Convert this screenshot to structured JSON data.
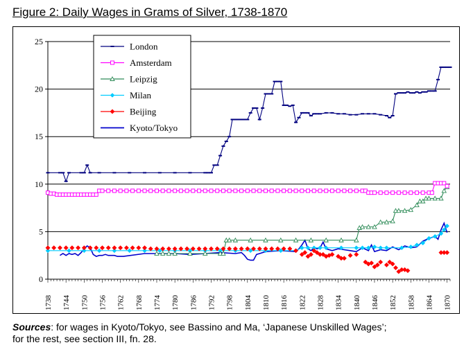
{
  "figure": {
    "title": "Figure 2: Daily Wages in Grams of Silver, 1738-1870",
    "sources_label": "Sources",
    "sources_line1": ": for wages in Kyoto/Tokyo, see Bassino and Ma, ‘Japanese Unskilled Wages’;",
    "sources_line2": "for the rest, see section III, fn. 28."
  },
  "chart_data": {
    "type": "line",
    "title": "Figure 2: Daily Wages in Grams of Silver, 1738-1870",
    "xlabel": "",
    "ylabel": "",
    "xlim": [
      1738,
      1871
    ],
    "ylim": [
      0,
      25
    ],
    "yticks": [
      0,
      5,
      10,
      15,
      20,
      25
    ],
    "xticks": [
      1738,
      1744,
      1750,
      1756,
      1762,
      1768,
      1774,
      1780,
      1786,
      1792,
      1798,
      1804,
      1810,
      1816,
      1822,
      1828,
      1834,
      1840,
      1846,
      1852,
      1858,
      1864,
      1870
    ],
    "grid": "horizontal",
    "legend_position": "top-left",
    "series": [
      {
        "name": "London",
        "color": "#00007f",
        "marker": "dash",
        "x": [
          1738,
          1742,
          1743,
          1744,
          1745,
          1749,
          1750,
          1751,
          1752,
          1755,
          1760,
          1765,
          1770,
          1775,
          1780,
          1785,
          1790,
          1791,
          1792,
          1793,
          1794,
          1795,
          1796,
          1797,
          1798,
          1799,
          1800,
          1801,
          1802,
          1803,
          1804,
          1805,
          1806,
          1807,
          1808,
          1809,
          1810,
          1811,
          1812,
          1813,
          1814,
          1815,
          1816,
          1817,
          1818,
          1819,
          1820,
          1821,
          1822,
          1823,
          1824,
          1825,
          1826,
          1827,
          1828,
          1830,
          1832,
          1834,
          1836,
          1838,
          1840,
          1842,
          1844,
          1846,
          1848,
          1850,
          1851,
          1852,
          1853,
          1854,
          1855,
          1856,
          1857,
          1858,
          1859,
          1860,
          1861,
          1862,
          1863,
          1864,
          1865,
          1866,
          1867,
          1868,
          1869,
          1870,
          1871
        ],
        "y": [
          11.2,
          11.2,
          11.2,
          10.3,
          11.2,
          11.2,
          11.2,
          12.0,
          11.2,
          11.2,
          11.2,
          11.2,
          11.2,
          11.2,
          11.2,
          11.2,
          11.2,
          11.2,
          11.2,
          12.0,
          12.0,
          13.0,
          14.0,
          14.5,
          15.0,
          16.8,
          16.8,
          16.8,
          16.8,
          16.8,
          16.8,
          17.5,
          18.0,
          18.0,
          16.8,
          18.0,
          19.5,
          19.5,
          19.5,
          20.8,
          20.8,
          20.8,
          18.3,
          18.3,
          18.2,
          18.3,
          16.5,
          17.0,
          17.5,
          17.5,
          17.5,
          17.2,
          17.4,
          17.4,
          17.4,
          17.5,
          17.5,
          17.4,
          17.4,
          17.3,
          17.3,
          17.4,
          17.4,
          17.4,
          17.3,
          17.2,
          17.0,
          17.2,
          19.5,
          19.6,
          19.6,
          19.6,
          19.7,
          19.6,
          19.6,
          19.7,
          19.6,
          19.7,
          19.7,
          19.8,
          19.8,
          19.8,
          21.0,
          22.3,
          22.3,
          22.3,
          22.3
        ]
      },
      {
        "name": "Amsterdam",
        "color": "#ff00ff",
        "marker": "square",
        "x": [
          1738,
          1739,
          1740,
          1741,
          1742,
          1743,
          1744,
          1745,
          1746,
          1747,
          1748,
          1749,
          1750,
          1751,
          1752,
          1753,
          1754,
          1755,
          1756,
          1758,
          1760,
          1762,
          1764,
          1766,
          1768,
          1770,
          1772,
          1774,
          1776,
          1778,
          1780,
          1782,
          1784,
          1786,
          1788,
          1790,
          1792,
          1794,
          1796,
          1798,
          1800,
          1802,
          1804,
          1806,
          1808,
          1810,
          1812,
          1814,
          1816,
          1818,
          1820,
          1822,
          1824,
          1826,
          1828,
          1830,
          1832,
          1834,
          1836,
          1838,
          1840,
          1842,
          1843,
          1844,
          1845,
          1846,
          1848,
          1850,
          1852,
          1854,
          1856,
          1858,
          1860,
          1862,
          1864,
          1865,
          1866,
          1867,
          1868,
          1869,
          1870
        ],
        "y": [
          9.1,
          9.0,
          9.0,
          8.9,
          8.9,
          8.9,
          8.9,
          8.9,
          8.9,
          8.9,
          8.9,
          8.9,
          8.9,
          8.9,
          8.9,
          8.9,
          8.9,
          9.3,
          9.3,
          9.3,
          9.3,
          9.3,
          9.3,
          9.3,
          9.3,
          9.3,
          9.3,
          9.3,
          9.3,
          9.3,
          9.3,
          9.3,
          9.3,
          9.3,
          9.3,
          9.3,
          9.3,
          9.3,
          9.3,
          9.3,
          9.3,
          9.3,
          9.3,
          9.3,
          9.3,
          9.3,
          9.3,
          9.3,
          9.3,
          9.3,
          9.3,
          9.3,
          9.3,
          9.3,
          9.3,
          9.3,
          9.3,
          9.3,
          9.3,
          9.3,
          9.3,
          9.3,
          9.3,
          9.1,
          9.1,
          9.1,
          9.1,
          9.1,
          9.1,
          9.1,
          9.1,
          9.1,
          9.1,
          9.1,
          9.1,
          9.1,
          10.1,
          10.1,
          10.1,
          10.1,
          9.8
        ]
      },
      {
        "name": "Leipzig",
        "color": "#2e8b57",
        "marker": "triangle",
        "x": [
          1774,
          1776,
          1778,
          1780,
          1785,
          1790,
          1795,
          1796,
          1797,
          1798,
          1800,
          1805,
          1810,
          1815,
          1820,
          1825,
          1830,
          1835,
          1840,
          1841,
          1842,
          1844,
          1846,
          1848,
          1850,
          1852,
          1853,
          1854,
          1856,
          1858,
          1860,
          1861,
          1862,
          1863,
          1864,
          1866,
          1868,
          1869,
          1870
        ],
        "y": [
          2.7,
          2.7,
          2.7,
          2.7,
          2.7,
          2.7,
          2.7,
          2.7,
          4.1,
          4.1,
          4.1,
          4.1,
          4.1,
          4.1,
          4.1,
          4.1,
          4.1,
          4.1,
          4.1,
          5.4,
          5.5,
          5.5,
          5.5,
          6.0,
          6.0,
          6.1,
          7.2,
          7.2,
          7.2,
          7.3,
          7.8,
          8.2,
          8.2,
          8.5,
          8.5,
          8.5,
          8.5,
          9.3,
          9.7
        ]
      },
      {
        "name": "Milan",
        "color": "#00ccff",
        "marker": "diamond",
        "x": [
          1738,
          1745,
          1750,
          1755,
          1760,
          1765,
          1770,
          1775,
          1780,
          1785,
          1790,
          1795,
          1800,
          1805,
          1810,
          1815,
          1820,
          1822,
          1824,
          1826,
          1828,
          1830,
          1835,
          1840,
          1842,
          1844,
          1846,
          1848,
          1850,
          1855,
          1858,
          1860,
          1862,
          1864,
          1866,
          1868,
          1869,
          1870
        ],
        "y": [
          3.0,
          3.0,
          3.0,
          3.0,
          3.0,
          3.0,
          3.0,
          3.0,
          3.0,
          3.0,
          3.0,
          3.0,
          3.0,
          3.0,
          3.0,
          3.0,
          3.0,
          3.3,
          3.3,
          3.3,
          3.3,
          3.3,
          3.3,
          3.3,
          3.3,
          3.3,
          3.4,
          3.3,
          3.3,
          3.3,
          3.4,
          3.6,
          3.8,
          4.3,
          4.5,
          4.8,
          5.2,
          5.6
        ]
      },
      {
        "name": "Beijing",
        "color": "#ff0000",
        "marker": "diamond-filled",
        "x": [
          1738,
          1740,
          1742,
          1744,
          1746,
          1748,
          1750,
          1752,
          1754,
          1756,
          1758,
          1760,
          1762,
          1764,
          1766,
          1768,
          1770,
          1772,
          1774,
          1776,
          1778,
          1780,
          1782,
          1784,
          1786,
          1788,
          1790,
          1792,
          1794,
          1796,
          1798,
          1800,
          1802,
          1804,
          1806,
          1808,
          1810,
          1812,
          1814,
          1816,
          1818,
          1820,
          1822,
          1823,
          1824,
          1825,
          1826,
          1827,
          1828,
          1829,
          1830,
          1831,
          1832,
          1834,
          1835,
          1836,
          1838,
          1840,
          1843,
          1844,
          1845,
          1846,
          1847,
          1848,
          1850,
          1851,
          1852,
          1853,
          1854,
          1855,
          1856,
          1857,
          1868,
          1869,
          1870
        ],
        "y": [
          3.3,
          3.3,
          3.3,
          3.3,
          3.3,
          3.3,
          3.3,
          3.3,
          3.3,
          3.3,
          3.3,
          3.3,
          3.3,
          3.3,
          3.3,
          3.3,
          3.3,
          3.2,
          3.2,
          3.2,
          3.2,
          3.2,
          3.2,
          3.2,
          3.2,
          3.2,
          3.2,
          3.2,
          3.2,
          3.2,
          3.2,
          3.2,
          3.2,
          3.2,
          3.2,
          3.2,
          3.2,
          3.2,
          3.2,
          3.2,
          3.2,
          3.0,
          2.6,
          2.8,
          2.4,
          2.6,
          3.0,
          2.8,
          2.6,
          2.6,
          2.4,
          2.5,
          2.6,
          2.4,
          2.2,
          2.2,
          2.5,
          2.6,
          1.8,
          1.6,
          1.7,
          1.3,
          1.5,
          1.8,
          1.5,
          1.8,
          1.6,
          1.2,
          0.8,
          1.0,
          1.0,
          0.9,
          2.8,
          2.8,
          2.8
        ]
      },
      {
        "name": "Kyoto/Tokyo",
        "color": "#0000cc",
        "marker": "none",
        "x": [
          1742,
          1743,
          1744,
          1745,
          1746,
          1747,
          1748,
          1749,
          1750,
          1751,
          1752,
          1753,
          1754,
          1755,
          1756,
          1757,
          1758,
          1759,
          1760,
          1761,
          1762,
          1763,
          1770,
          1775,
          1780,
          1785,
          1790,
          1795,
          1800,
          1802,
          1803,
          1804,
          1805,
          1806,
          1807,
          1808,
          1810,
          1815,
          1820,
          1821,
          1822,
          1823,
          1824,
          1825,
          1826,
          1827,
          1828,
          1829,
          1830,
          1832,
          1834,
          1836,
          1838,
          1840,
          1842,
          1844,
          1845,
          1846,
          1848,
          1850,
          1852,
          1854,
          1856,
          1858,
          1860,
          1862,
          1864,
          1866,
          1867,
          1868,
          1869,
          1870
        ],
        "y": [
          2.5,
          2.7,
          2.5,
          2.7,
          2.6,
          2.7,
          2.5,
          2.8,
          3.2,
          3.5,
          3.3,
          2.6,
          2.4,
          2.5,
          2.5,
          2.6,
          2.5,
          2.5,
          2.5,
          2.4,
          2.4,
          2.4,
          2.7,
          2.7,
          2.7,
          2.6,
          2.7,
          2.8,
          2.7,
          2.8,
          2.5,
          2.1,
          2.0,
          2.0,
          2.6,
          2.7,
          2.9,
          3.0,
          2.9,
          3.2,
          3.6,
          4.1,
          3.2,
          3.0,
          3.3,
          3.2,
          3.3,
          3.9,
          3.2,
          3.0,
          3.2,
          3.1,
          3.0,
          2.9,
          3.3,
          3.0,
          3.6,
          2.9,
          3.1,
          3.0,
          3.4,
          3.1,
          3.5,
          3.3,
          3.4,
          4.0,
          4.3,
          4.5,
          4.2,
          5.2,
          5.9,
          4.9
        ]
      }
    ]
  }
}
